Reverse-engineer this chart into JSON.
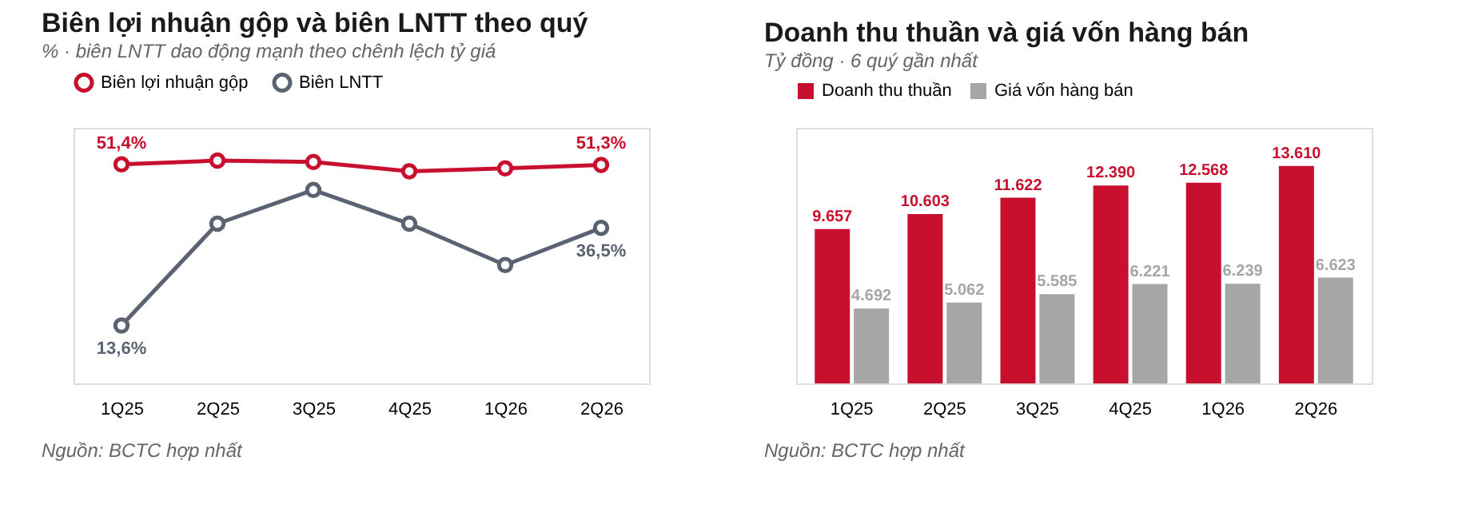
{
  "chart_data": [
    {
      "type": "line",
      "title": "Biên lợi nhuận gộp và biên LNTT theo quý",
      "subtitle": "% · biên LNTT dao động mạnh theo chênh lệch tỷ giá",
      "categories": [
        "1Q25",
        "2Q25",
        "3Q25",
        "4Q25",
        "1Q26",
        "2Q26"
      ],
      "ylim": [
        0,
        60
      ],
      "tick_labels": "x",
      "marker": "circle",
      "line_style": "solid",
      "legend": "top",
      "grid": false,
      "series": [
        {
          "name": "Biên lợi nhuận gộp",
          "color": "#c8102e",
          "values": [
            51.4,
            52.3,
            52.0,
            49.8,
            50.5,
            51.3
          ],
          "value_labels": [
            "51,4%",
            null,
            null,
            null,
            null,
            "51,3%"
          ]
        },
        {
          "name": "Biên LNTT",
          "color": "#5b6272",
          "values": [
            13.6,
            37.5,
            45.4,
            37.5,
            27.8,
            36.5
          ],
          "value_labels": [
            "13,6%",
            null,
            null,
            null,
            null,
            "36,5%"
          ]
        }
      ],
      "annotations": [
        "Nguồn: BCTC hợp nhất"
      ]
    },
    {
      "type": "bar",
      "title": "Doanh thu thuần và giá vốn hàng bán",
      "subtitle": "Tỷ đồng · 6 quý gần nhất",
      "categories": [
        "1Q25",
        "2Q25",
        "3Q25",
        "4Q25",
        "1Q26",
        "2Q26"
      ],
      "ylim": [
        0,
        16000
      ],
      "tick_labels": "x",
      "legend": "top",
      "grid": false,
      "series": [
        {
          "name": "Doanh thu thuần",
          "color": "#c8102e",
          "values": [
            9657,
            10603,
            11622,
            12390,
            12568,
            13610
          ],
          "value_labels": [
            "9.657",
            "10.603",
            "11.622",
            "12.390",
            "12.568",
            "13.610"
          ]
        },
        {
          "name": "Giá vốn hàng bán",
          "color": "#a6a6a6",
          "values": [
            4692,
            5062,
            5585,
            6221,
            6239,
            6623
          ],
          "value_labels": [
            "4.692",
            "5.062",
            "5.585",
            "6.221",
            "6.239",
            "6.623"
          ]
        }
      ],
      "annotations": [
        "Nguồn: BCTC hợp nhất"
      ]
    }
  ]
}
